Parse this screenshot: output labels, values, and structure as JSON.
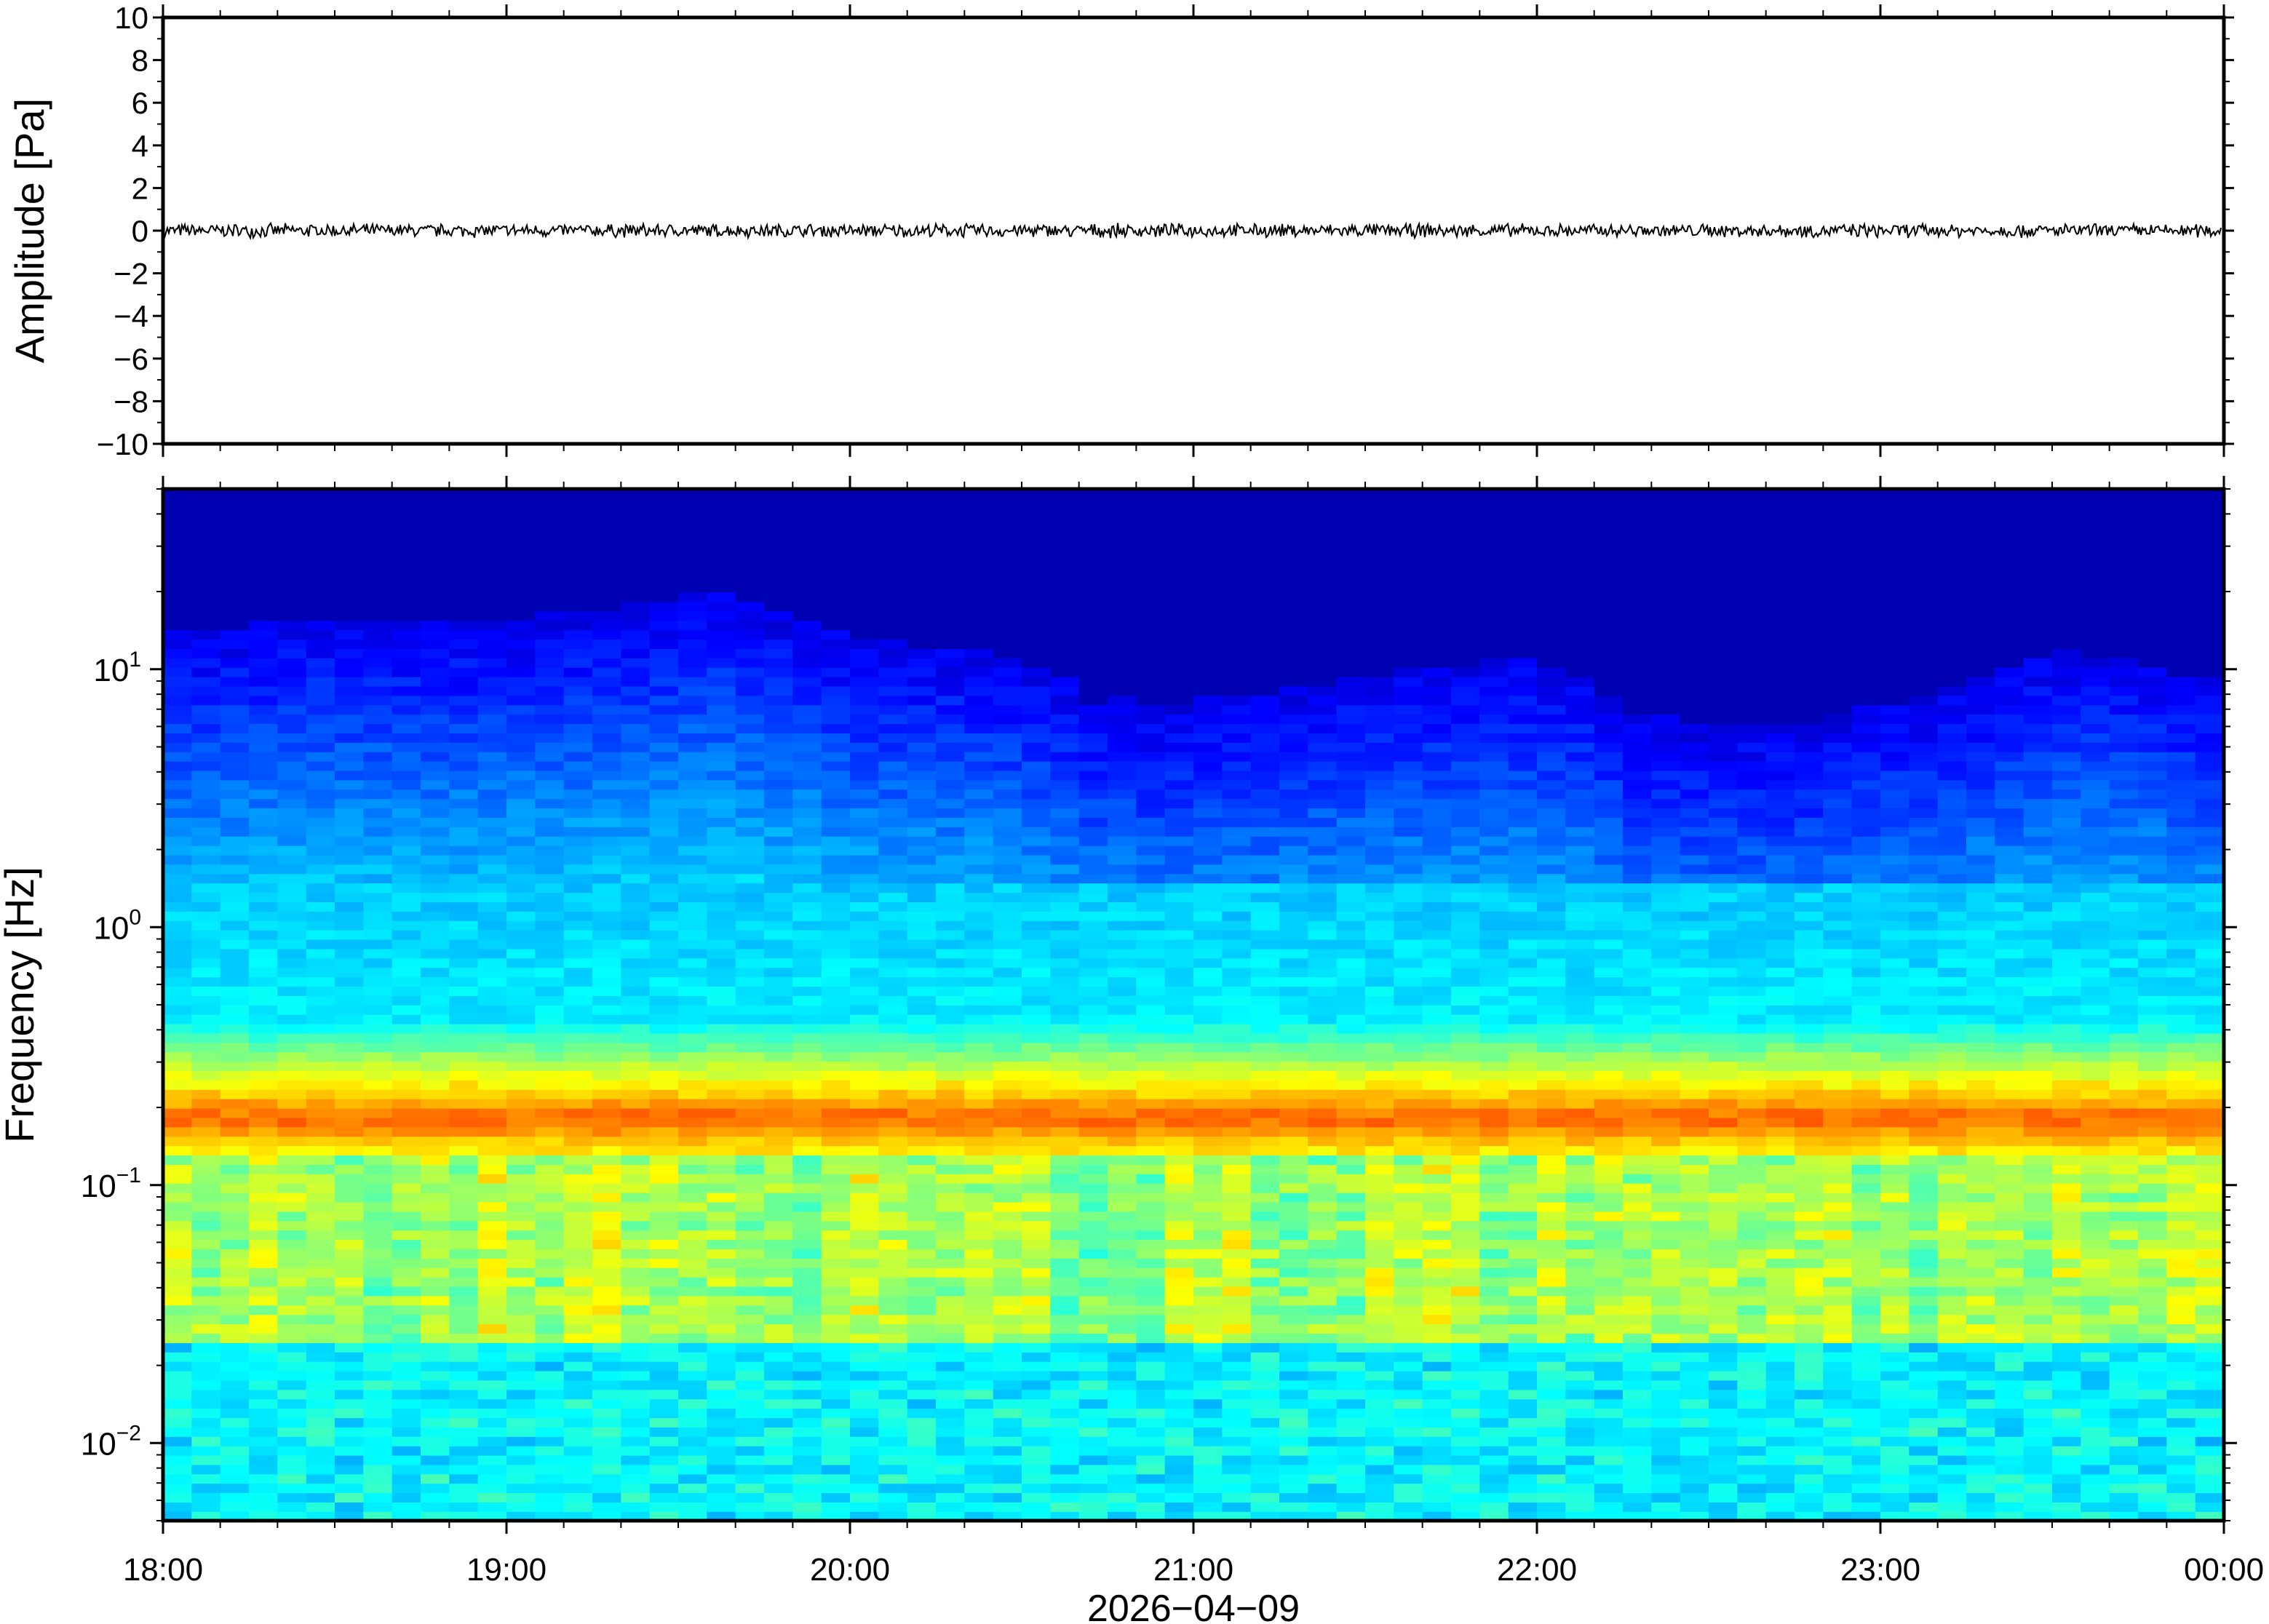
{
  "chart_data": [
    {
      "type": "line",
      "panel": "waveform",
      "ylabel": "Amplitude [Pa]",
      "ylim": [
        -10,
        10
      ],
      "yticks": [
        10,
        8,
        6,
        4,
        2,
        0,
        -2,
        -4,
        -6,
        -8,
        -10
      ],
      "ytick_labels": [
        "10",
        "8",
        "6",
        "4",
        "2",
        "0",
        "−2",
        "−4",
        "−6",
        "−8",
        "−10"
      ],
      "xlim": [
        "2026-04-09 18:00",
        "2026-04-10 00:00"
      ],
      "series": [
        {
          "baseline": 0,
          "peak_amplitude_approx": 0.3,
          "color": "#000000"
        }
      ],
      "grid": false
    },
    {
      "type": "heatmap",
      "panel": "spectrogram",
      "ylabel": "Frequency [Hz]",
      "yscale": "log",
      "ylim": [
        0.005,
        50
      ],
      "yticks": [
        {
          "base": "10",
          "exp": "1",
          "value": 10
        },
        {
          "base": "10",
          "exp": "0",
          "value": 1
        },
        {
          "base": "10",
          "exp": "−1",
          "value": 0.1
        },
        {
          "base": "10",
          "exp": "−2",
          "value": 0.01
        }
      ],
      "xlabel": "2026−04−09",
      "xlim": [
        "2026-04-09 18:00",
        "2026-04-10 00:00"
      ],
      "xticks": [
        "18:00",
        "19:00",
        "20:00",
        "21:00",
        "22:00",
        "23:00",
        "00:00"
      ],
      "colormap": "jet",
      "microbarom_band_hz": [
        0.15,
        0.22
      ],
      "noise_ceiling_hz": [
        14,
        16,
        15,
        17,
        20,
        13,
        12,
        7,
        8,
        10,
        11,
        6,
        6,
        8,
        12,
        9
      ],
      "grid": false
    }
  ],
  "colors": {
    "frame": "#000000",
    "background": "#ffffff",
    "spectrogram_low": "#00007f",
    "spectrogram_high": "#ff7f00"
  }
}
